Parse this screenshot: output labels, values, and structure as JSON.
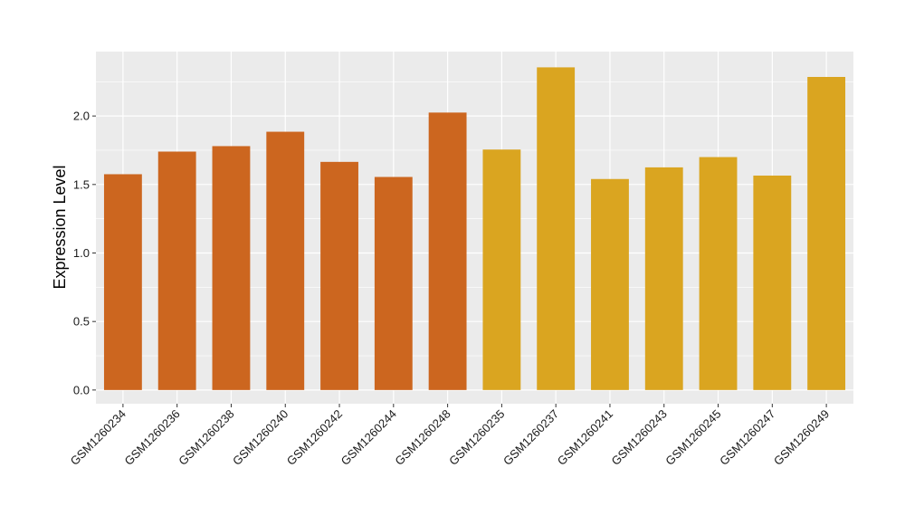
{
  "chart_data": {
    "type": "bar",
    "title": "",
    "xlabel": "",
    "ylabel": "Expression Level",
    "ylim": [
      -0.1,
      2.47
    ],
    "yticks": [
      0.0,
      0.5,
      1.0,
      1.5,
      2.0
    ],
    "ytick_labels": [
      "0.0",
      "0.5",
      "1.0",
      "1.5",
      "2.0"
    ],
    "grid": true,
    "legend": "none",
    "categories": [
      "GSM1260234",
      "GSM1260236",
      "GSM1260238",
      "GSM1260240",
      "GSM1260242",
      "GSM1260244",
      "GSM1260248",
      "GSM1260235",
      "GSM1260237",
      "GSM1260241",
      "GSM1260243",
      "GSM1260245",
      "GSM1260247",
      "GSM1260249"
    ],
    "values": [
      1.575,
      1.74,
      1.78,
      1.885,
      1.665,
      1.555,
      2.025,
      1.755,
      2.355,
      1.54,
      1.625,
      1.7,
      1.565,
      2.285
    ],
    "colors": [
      "#cc661f",
      "#cc661f",
      "#cc661f",
      "#cc661f",
      "#cc661f",
      "#cc661f",
      "#cc661f",
      "#daa520",
      "#daa520",
      "#daa520",
      "#daa520",
      "#daa520",
      "#daa520",
      "#daa520"
    ],
    "panel_background": "#ebebeb",
    "gridline_color": "#ffffff"
  }
}
